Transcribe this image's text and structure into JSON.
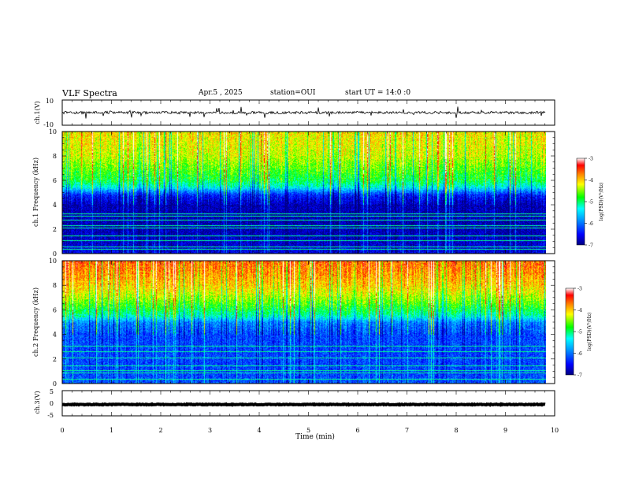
{
  "header": {
    "title": "VLF Spectra",
    "date": "Apr.5 , 2025",
    "station": "station=OUI",
    "start": "start UT = 14:0 :0"
  },
  "colors": {
    "spectrogram_scale": [
      "#00008b",
      "#0000ff",
      "#0080ff",
      "#00ffff",
      "#00ff00",
      "#ffff00",
      "#ff8000",
      "#ff0000",
      "#ffffff"
    ],
    "trace": "#000000"
  },
  "chart_data": [
    {
      "type": "line",
      "name": "waveform-ch1",
      "ylabel": "ch.1(V)",
      "ylim": [
        -10,
        10
      ],
      "y_ticklabels": [
        "10",
        "-10"
      ],
      "xlim": [
        0,
        10
      ],
      "x_extent": [
        0,
        9.82
      ],
      "level": 0,
      "noise_amplitude": 1
    },
    {
      "type": "heatmap",
      "name": "spectrogram-ch1",
      "ylabel": "ch.1 Frequency (kHz)",
      "ylim": [
        0,
        10
      ],
      "y_ticklabels": [
        "0",
        "2",
        "4",
        "6",
        "8",
        "10"
      ],
      "xlim": [
        0,
        10
      ],
      "x_extent": [
        0,
        9.82
      ],
      "colorbar": {
        "label": "log(PSD)(V²/Hz)",
        "range": [
          -7,
          -3
        ],
        "ticklabels": [
          "-7",
          "-6",
          "-5",
          "-4",
          "-3"
        ]
      },
      "profile_khz": [
        0,
        1,
        2,
        3,
        4,
        4.8,
        5.5,
        6,
        7,
        8,
        9,
        10
      ],
      "profile_logpsd": [
        -6.6,
        -6.7,
        -6.8,
        -6.8,
        -6.8,
        -6.4,
        -5.3,
        -4.9,
        -4.6,
        -4.3,
        -4.2,
        -4.1
      ],
      "lines_khz": [
        0.4,
        0.6,
        1.1,
        1.5,
        2.1,
        2.3,
        2.8,
        3.1,
        3.3
      ]
    },
    {
      "type": "heatmap",
      "name": "spectrogram-ch2",
      "ylabel": "ch.2 Frequency (kHz)",
      "ylim": [
        0,
        10
      ],
      "y_ticklabels": [
        "0",
        "2",
        "4",
        "6",
        "8",
        "10"
      ],
      "xlim": [
        0,
        10
      ],
      "x_extent": [
        0,
        9.82
      ],
      "colorbar": {
        "label": "log(PSD)(V²/Hz)",
        "range": [
          -7,
          -3
        ],
        "ticklabels": [
          "-7",
          "-6",
          "-5",
          "-4",
          "-3"
        ]
      },
      "profile_khz": [
        0,
        1,
        2,
        3,
        4,
        5,
        5.5,
        6,
        7,
        8,
        9,
        10
      ],
      "profile_logpsd": [
        -6.1,
        -6.2,
        -6.2,
        -6.2,
        -6.2,
        -5.9,
        -5.2,
        -4.9,
        -4.4,
        -4.0,
        -3.8,
        -3.6
      ],
      "lines_khz": [
        0.4,
        0.9,
        1.1,
        1.5,
        2.1,
        2.6,
        3.1
      ]
    },
    {
      "type": "line",
      "name": "waveform-ch3",
      "ylabel": "ch.3(V)",
      "ylim": [
        -5,
        5
      ],
      "y_ticklabels": [
        "5",
        "0",
        "-5"
      ],
      "xlim": [
        0,
        10
      ],
      "x_extent": [
        0,
        9.82
      ],
      "level": -0.5,
      "noise_amplitude": 0.15
    }
  ],
  "x_axis": {
    "label": "Time (min)",
    "ticklabels": [
      "0",
      "1",
      "2",
      "3",
      "4",
      "5",
      "6",
      "7",
      "8",
      "9",
      "10"
    ]
  }
}
